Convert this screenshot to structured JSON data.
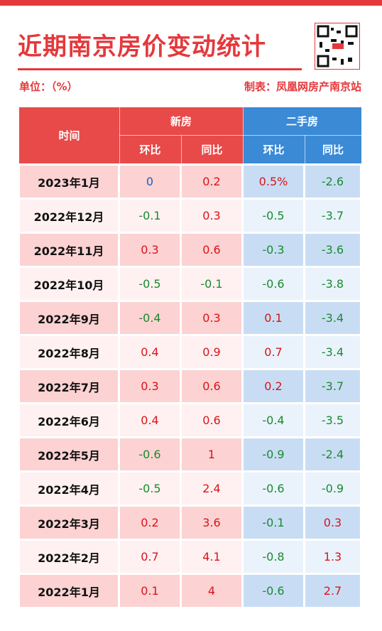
{
  "header": {
    "title": "近期南京房价变动统计",
    "unit": "单位：（%）",
    "source": "制表：凤凰网房产南京站"
  },
  "table": {
    "time_header": "时间",
    "groups": [
      "新房",
      "二手房"
    ],
    "subheaders": [
      "环比",
      "同比",
      "环比",
      "同比"
    ],
    "rows": [
      [
        "2023年1月",
        "0",
        "0.2",
        "0.5%",
        "-2.6"
      ],
      [
        "2022年12月",
        "-0.1",
        "0.3",
        "-0.5",
        "-3.7"
      ],
      [
        "2022年11月",
        "0.3",
        "0.6",
        "-0.3",
        "-3.6"
      ],
      [
        "2022年10月",
        "-0.5",
        "-0.1",
        "-0.6",
        "-3.8"
      ],
      [
        "2022年9月",
        "-0.4",
        "0.3",
        "0.1",
        "-3.4"
      ],
      [
        "2022年8月",
        "0.4",
        "0.9",
        "0.7",
        "-3.4"
      ],
      [
        "2022年7月",
        "0.3",
        "0.6",
        "0.2",
        "-3.7"
      ],
      [
        "2022年6月",
        "0.4",
        "0.6",
        "-0.4",
        "-3.5"
      ],
      [
        "2022年5月",
        "-0.6",
        "1",
        "-0.9",
        "-2.4"
      ],
      [
        "2022年4月",
        "-0.5",
        "2.4",
        "-0.6",
        "-0.9"
      ],
      [
        "2022年3月",
        "0.2",
        "3.6",
        "-0.1",
        "0.3"
      ],
      [
        "2022年2月",
        "0.7",
        "4.1",
        "-0.8",
        "1.3"
      ],
      [
        "2022年1月",
        "0.1",
        "4",
        "-0.6",
        "2.7"
      ]
    ]
  }
}
